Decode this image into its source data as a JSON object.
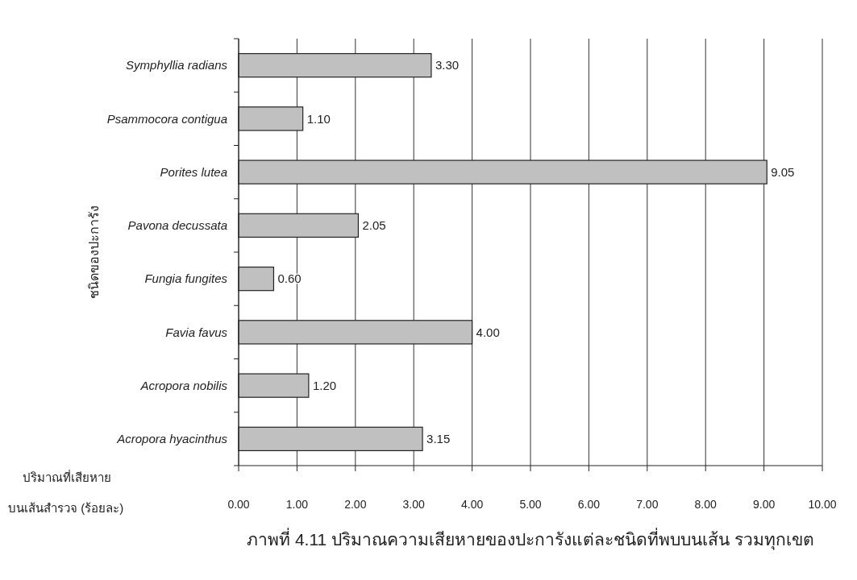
{
  "chart_data": {
    "type": "bar",
    "orientation": "horizontal",
    "title": "ภาพที่ 4.11 ปริมาณความเสียหายของปะการังแต่ละชนิดที่พบบนเส้น รวมทุกเขต",
    "xlabel": "ปริมาณที่เสียหาย\nบนเส้นสำรวจ (ร้อยละ)",
    "ylabel": "ชนิดของปะการัง",
    "categories": [
      "Symphyllia radians",
      "Psammocora contigua",
      "Porites lutea",
      "Pavona decussata",
      "Fungia fungites",
      "Favia favus",
      "Acropora nobilis",
      "Acropora hyacinthus"
    ],
    "values": [
      3.3,
      1.1,
      9.05,
      2.05,
      0.6,
      4.0,
      1.2,
      3.15
    ],
    "value_labels": [
      "3.30",
      "1.10",
      "9.05",
      "2.05",
      "0.60",
      "4.00",
      "1.20",
      "3.15"
    ],
    "color": "#c0c0c0",
    "xlim": [
      0,
      10
    ],
    "xticks": [
      {
        "value": 0,
        "label": "0.00"
      },
      {
        "value": 1,
        "label": "1.00"
      },
      {
        "value": 2,
        "label": "2.00"
      },
      {
        "value": 3,
        "label": "3.00"
      },
      {
        "value": 4,
        "label": "4.00"
      },
      {
        "value": 5,
        "label": "5.00"
      },
      {
        "value": 6,
        "label": "6.00"
      },
      {
        "value": 7,
        "label": "7.00"
      },
      {
        "value": 8,
        "label": "8.00"
      },
      {
        "value": 9,
        "label": "9.00"
      },
      {
        "value": 10,
        "label": "10.00"
      }
    ],
    "grid": "x"
  }
}
